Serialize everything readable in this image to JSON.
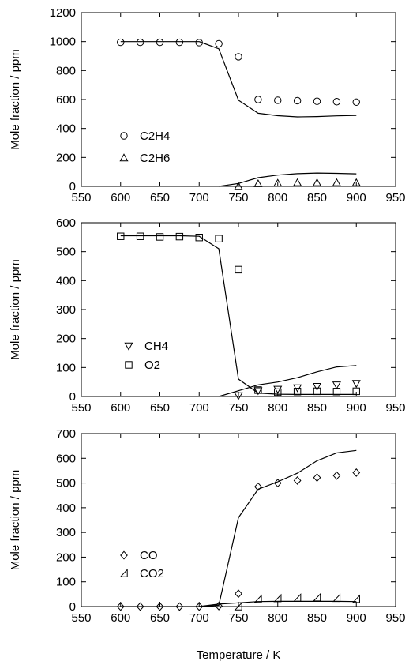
{
  "figure": {
    "xlabel": "Temperature / K"
  },
  "chart_data": [
    {
      "type": "scatter",
      "title": "",
      "xlabel": "",
      "ylabel": "Mole fraction / ppm",
      "xlim": [
        550,
        950
      ],
      "ylim": [
        0,
        1200
      ],
      "xticks": [
        550,
        600,
        650,
        700,
        750,
        800,
        850,
        900,
        950
      ],
      "yticks": [
        0,
        200,
        400,
        600,
        800,
        1000,
        1200
      ],
      "grid": false,
      "legend_position": "lower-left",
      "series": [
        {
          "name": "C2H4",
          "marker": "circle",
          "x": [
            600,
            625,
            650,
            675,
            700,
            725,
            750,
            775,
            800,
            825,
            850,
            875,
            900
          ],
          "y": [
            995,
            995,
            995,
            995,
            993,
            985,
            895,
            600,
            595,
            592,
            588,
            585,
            582
          ]
        },
        {
          "name": "C2H6",
          "marker": "triangle-up",
          "x": [
            750,
            775,
            800,
            825,
            850,
            875,
            900
          ],
          "y": [
            0,
            18,
            22,
            25,
            25,
            25,
            25
          ]
        }
      ],
      "lines": [
        {
          "x": [
            600,
            625,
            650,
            675,
            700,
            725,
            750,
            775,
            800,
            825,
            850,
            875,
            900
          ],
          "y": [
            1000,
            1000,
            1000,
            1000,
            1000,
            950,
            595,
            505,
            488,
            480,
            482,
            487,
            490
          ]
        },
        {
          "x": [
            725,
            750,
            775,
            800,
            825,
            850,
            875,
            900
          ],
          "y": [
            0,
            20,
            60,
            78,
            88,
            92,
            90,
            87
          ]
        }
      ]
    },
    {
      "type": "scatter",
      "title": "",
      "xlabel": "",
      "ylabel": "Mole fraction / ppm",
      "xlim": [
        550,
        950
      ],
      "ylim": [
        0,
        600
      ],
      "xticks": [
        550,
        600,
        650,
        700,
        750,
        800,
        850,
        900,
        950
      ],
      "yticks": [
        0,
        100,
        200,
        300,
        400,
        500,
        600
      ],
      "grid": false,
      "legend_position": "lower-left",
      "series": [
        {
          "name": "CH4",
          "marker": "triangle-down",
          "x": [
            750,
            775,
            800,
            825,
            850,
            875,
            900
          ],
          "y": [
            3,
            20,
            25,
            30,
            35,
            40,
            45
          ]
        },
        {
          "name": "O2",
          "marker": "square",
          "x": [
            600,
            625,
            650,
            675,
            700,
            725,
            750,
            775,
            800,
            825,
            850,
            875,
            900
          ],
          "y": [
            553,
            553,
            551,
            552,
            549,
            545,
            438,
            22,
            15,
            17,
            18,
            17,
            18
          ]
        }
      ],
      "lines": [
        {
          "x": [
            600,
            625,
            650,
            675,
            700,
            725,
            750,
            775,
            800,
            825,
            850,
            875,
            900
          ],
          "y": [
            555,
            555,
            555,
            555,
            553,
            510,
            60,
            12,
            8,
            7,
            7,
            7,
            7
          ]
        },
        {
          "x": [
            725,
            750,
            775,
            800,
            825,
            850,
            875,
            900
          ],
          "y": [
            0,
            20,
            40,
            50,
            65,
            85,
            102,
            107
          ]
        }
      ]
    },
    {
      "type": "scatter",
      "title": "",
      "xlabel": "",
      "ylabel": "Mole fraction / ppm",
      "xlim": [
        550,
        950
      ],
      "ylim": [
        0,
        700
      ],
      "xticks": [
        550,
        600,
        650,
        700,
        750,
        800,
        850,
        900,
        950
      ],
      "yticks": [
        0,
        100,
        200,
        300,
        400,
        500,
        600,
        700
      ],
      "grid": false,
      "legend_position": "lower-left",
      "series": [
        {
          "name": "CO",
          "marker": "diamond",
          "x": [
            600,
            625,
            650,
            675,
            700,
            725,
            750,
            775,
            800,
            825,
            850,
            875,
            900
          ],
          "y": [
            0,
            0,
            0,
            0,
            0,
            2,
            52,
            485,
            500,
            510,
            522,
            530,
            542
          ]
        },
        {
          "name": "CO2",
          "marker": "half-triangle",
          "x": [
            750,
            775,
            800,
            825,
            850,
            875,
            900
          ],
          "y": [
            0,
            30,
            33,
            35,
            36,
            34,
            30
          ]
        }
      ],
      "lines": [
        {
          "x": [
            600,
            625,
            650,
            675,
            700,
            725,
            750,
            775,
            800,
            825,
            850,
            875,
            900
          ],
          "y": [
            0,
            0,
            0,
            0,
            0,
            5,
            360,
            475,
            505,
            540,
            590,
            622,
            632
          ]
        },
        {
          "x": [
            700,
            725,
            750,
            775,
            800,
            825,
            850,
            875,
            900
          ],
          "y": [
            0,
            10,
            15,
            20,
            21,
            21,
            21,
            21,
            20
          ]
        }
      ]
    }
  ]
}
